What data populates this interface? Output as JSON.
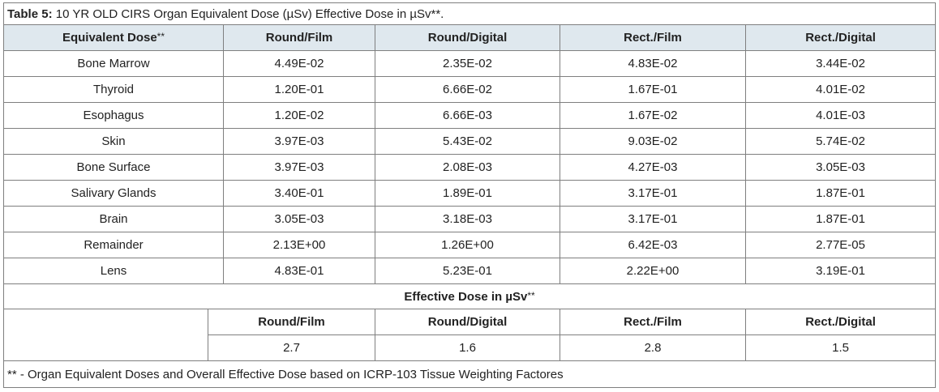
{
  "caption": {
    "label": "Table 5:",
    "text": " 10 YR OLD CIRS Organ Equivalent Dose (µSv)  Effective Dose in µSv**."
  },
  "equiv_table": {
    "headers": [
      "Equivalent  Dose",
      "Round/Film",
      "Round/Digital",
      "Rect./Film",
      "Rect./Digital"
    ],
    "header_first_sup": "**",
    "rows": [
      [
        "Bone Marrow",
        "4.49E-02",
        "2.35E-02",
        "4.83E-02",
        "3.44E-02"
      ],
      [
        "Thyroid",
        "1.20E-01",
        "6.66E-02",
        "1.67E-01",
        "4.01E-02"
      ],
      [
        "Esophagus",
        "1.20E-02",
        "6.66E-03",
        "1.67E-02",
        "4.01E-03"
      ],
      [
        "Skin",
        "3.97E-03",
        "5.43E-02",
        "9.03E-02",
        "5.74E-02"
      ],
      [
        "Bone Surface",
        "3.97E-03",
        "2.08E-03",
        "4.27E-03",
        "3.05E-03"
      ],
      [
        "Salivary Glands",
        "3.40E-01",
        "1.89E-01",
        "3.17E-01",
        "1.87E-01"
      ],
      [
        "Brain",
        "3.05E-03",
        "3.18E-03",
        "3.17E-01",
        "1.87E-01"
      ],
      [
        "Remainder",
        "2.13E+00",
        "1.26E+00",
        "6.42E-03",
        "2.77E-05"
      ],
      [
        "Lens",
        "4.83E-01",
        "5.23E-01",
        "2.22E+00",
        "3.19E-01"
      ]
    ]
  },
  "effective": {
    "title": "Effective Dose in µSv",
    "title_sup": "**",
    "headers": [
      "Round/Film",
      "Round/Digital",
      "Rect./Film",
      "Rect./Digital"
    ],
    "values": [
      "2.7",
      "1.6",
      "2.8",
      "1.5"
    ]
  },
  "footnote": "** - Organ Equivalent Doses and Overall Effective Dose based on ICRP-103 Tissue Weighting Factores",
  "colors": {
    "header_bg": "#dfe8ee",
    "border": "#7f7f7f"
  }
}
